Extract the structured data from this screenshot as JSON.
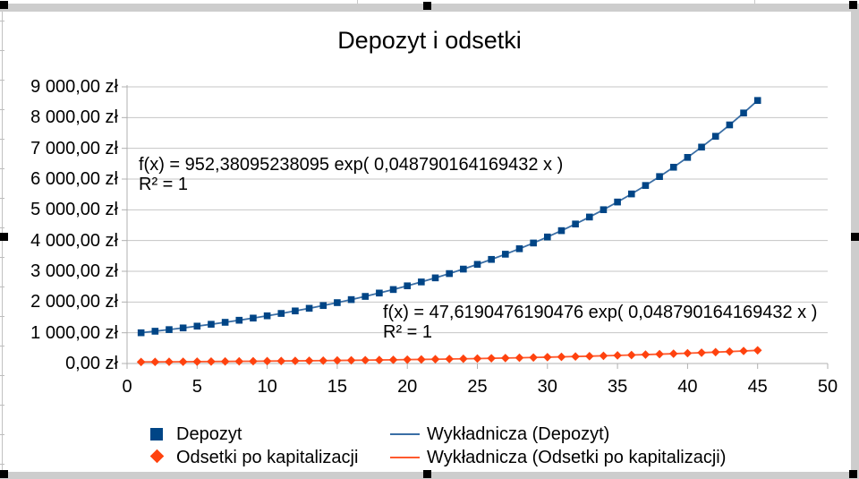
{
  "chart_data": {
    "type": "scatter",
    "title": "Depozyt i odsetki",
    "grid": true,
    "legend_position": "bottom",
    "x_axis": {
      "min": 0,
      "max": 50,
      "ticks": [
        0,
        5,
        10,
        15,
        20,
        25,
        30,
        35,
        40,
        45,
        50
      ]
    },
    "y_axis": {
      "min": 0,
      "max": 9000,
      "tick_values": [
        0,
        1000,
        2000,
        3000,
        4000,
        5000,
        6000,
        7000,
        8000,
        9000
      ],
      "tick_labels": [
        "0,00 zł",
        "1 000,00 zł",
        "2 000,00 zł",
        "3 000,00 zł",
        "4 000,00 zł",
        "5 000,00 zł",
        "6 000,00 zł",
        "7 000,00 zł",
        "8 000,00 zł",
        "9 000,00 zł"
      ]
    },
    "series": [
      {
        "name": "Depozyt",
        "marker": "square",
        "color": "#004586",
        "x": [
          1,
          2,
          3,
          4,
          5,
          6,
          7,
          8,
          9,
          10,
          11,
          12,
          13,
          14,
          15,
          16,
          17,
          18,
          19,
          20,
          21,
          22,
          23,
          24,
          25,
          26,
          27,
          28,
          29,
          30,
          31,
          32,
          33,
          34,
          35,
          36,
          37,
          38,
          39,
          40,
          41,
          42,
          43,
          44,
          45
        ],
        "y": [
          1000,
          1050,
          1102.5,
          1157.63,
          1215.51,
          1276.28,
          1340.1,
          1407.1,
          1477.46,
          1551.33,
          1628.89,
          1710.34,
          1795.86,
          1885.65,
          1979.93,
          2078.93,
          2182.87,
          2292.02,
          2406.62,
          2526.95,
          2653.3,
          2785.96,
          2925.26,
          3071.52,
          3225.1,
          3386.35,
          3555.67,
          3733.46,
          3920.13,
          4116.14,
          4321.94,
          4538.04,
          4764.94,
          5003.19,
          5253.35,
          5516.02,
          5791.82,
          6081.41,
          6385.48,
          6704.75,
          7039.99,
          7391.99,
          7761.59,
          8149.67,
          8557.15
        ]
      },
      {
        "name": "Odsetki po kapitalizacji",
        "marker": "diamond",
        "color": "#FF420E",
        "x": [
          1,
          2,
          3,
          4,
          5,
          6,
          7,
          8,
          9,
          10,
          11,
          12,
          13,
          14,
          15,
          16,
          17,
          18,
          19,
          20,
          21,
          22,
          23,
          24,
          25,
          26,
          27,
          28,
          29,
          30,
          31,
          32,
          33,
          34,
          35,
          36,
          37,
          38,
          39,
          40,
          41,
          42,
          43,
          44,
          45
        ],
        "y": [
          50,
          52.5,
          55.13,
          57.88,
          60.78,
          63.81,
          67,
          70.36,
          73.87,
          77.57,
          81.44,
          85.52,
          89.79,
          94.28,
          99,
          103.95,
          109.14,
          114.6,
          120.33,
          126.35,
          132.66,
          139.3,
          146.26,
          153.58,
          161.26,
          169.32,
          177.78,
          186.67,
          196.01,
          205.81,
          216.1,
          226.9,
          238.25,
          250.16,
          262.67,
          275.8,
          289.59,
          304.07,
          319.27,
          335.24,
          352,
          369.6,
          388.08,
          407.48,
          427.86
        ]
      }
    ],
    "trendlines": [
      {
        "name": "Wykładnicza (Depozyt)",
        "color": "#3A6EA5",
        "equation": "f(x) = 952,38095238095 exp( 0,048790164169432 x )",
        "r2": "R² = 1"
      },
      {
        "name": "Wykładnicza (Odsetki po kapitalizacji)",
        "color": "#FF5A2E",
        "equation": "f(x) = 47,6190476190476 exp( 0,048790164169432 x )",
        "r2": "R² = 1"
      }
    ]
  }
}
